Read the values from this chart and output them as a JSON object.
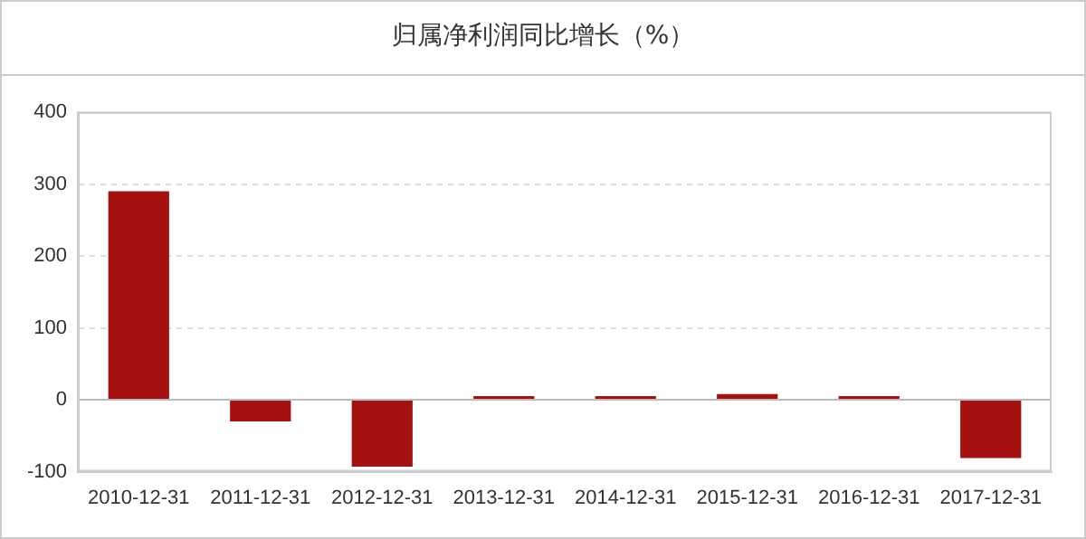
{
  "chart_data": {
    "type": "bar",
    "title": "归属净利润同比增长（%）",
    "categories": [
      "2010-12-31",
      "2011-12-31",
      "2012-12-31",
      "2013-12-31",
      "2014-12-31",
      "2015-12-31",
      "2016-12-31",
      "2017-12-31"
    ],
    "series": [
      {
        "color": "#a51111",
        "values": [
          290,
          -30,
          -93,
          5,
          5,
          8,
          5,
          -81
        ]
      }
    ],
    "ylim": [
      -100,
      400
    ],
    "yticks": [
      -100,
      0,
      100,
      200,
      300,
      400
    ],
    "grid": "y",
    "legend": false
  }
}
